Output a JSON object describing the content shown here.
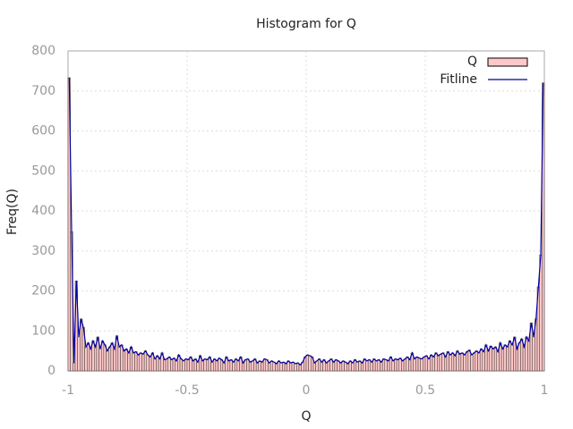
{
  "chart_data": {
    "type": "histogram",
    "title": "Histogram for Q",
    "x_label": "Q",
    "y_label": "Freq(Q)",
    "bins": [
      -1,
      -0.99,
      -0.98,
      -0.97,
      -0.96,
      -0.95,
      -0.94,
      -0.93,
      -0.92,
      -0.91,
      -0.9,
      -0.89,
      -0.88,
      -0.87,
      -0.86,
      -0.85,
      -0.84,
      -0.83,
      -0.82,
      -0.81,
      -0.8,
      -0.79,
      -0.78,
      -0.77,
      -0.76,
      -0.75,
      -0.74,
      -0.73,
      -0.72,
      -0.71,
      -0.7,
      -0.69,
      -0.68,
      -0.67,
      -0.66,
      -0.65,
      -0.64,
      -0.63,
      -0.62,
      -0.61,
      -0.6,
      -0.59,
      -0.58,
      -0.57,
      -0.56,
      -0.55,
      -0.54,
      -0.53,
      -0.52,
      -0.51,
      -0.5,
      -0.49,
      -0.48,
      -0.47,
      -0.46,
      -0.45,
      -0.44,
      -0.43,
      -0.42,
      -0.41,
      -0.4,
      -0.39,
      -0.38,
      -0.37,
      -0.36,
      -0.35,
      -0.34,
      -0.33,
      -0.32,
      -0.31,
      -0.3,
      -0.29,
      -0.28,
      -0.27,
      -0.26,
      -0.25,
      -0.24,
      -0.23,
      -0.22,
      -0.21,
      -0.2,
      -0.19,
      -0.18,
      -0.17,
      -0.16,
      -0.15,
      -0.14,
      -0.13,
      -0.12,
      -0.11,
      -0.1,
      -0.09,
      -0.08,
      -0.07,
      -0.06,
      -0.05,
      -0.04,
      -0.03,
      -0.02,
      -0.01,
      0,
      0.01,
      0.02,
      0.03,
      0.04,
      0.05,
      0.06,
      0.07,
      0.08,
      0.09,
      0.1,
      0.11,
      0.12,
      0.13,
      0.14,
      0.15,
      0.16,
      0.17,
      0.18,
      0.19,
      0.2,
      0.21,
      0.22,
      0.23,
      0.24,
      0.25,
      0.26,
      0.27,
      0.28,
      0.29,
      0.3,
      0.31,
      0.32,
      0.33,
      0.34,
      0.35,
      0.36,
      0.37,
      0.38,
      0.39,
      0.4,
      0.41,
      0.42,
      0.43,
      0.44,
      0.45,
      0.46,
      0.47,
      0.48,
      0.49,
      0.5,
      0.51,
      0.52,
      0.53,
      0.54,
      0.55,
      0.56,
      0.57,
      0.58,
      0.59,
      0.6,
      0.61,
      0.62,
      0.63,
      0.64,
      0.65,
      0.66,
      0.67,
      0.68,
      0.69,
      0.7,
      0.71,
      0.72,
      0.73,
      0.74,
      0.75,
      0.76,
      0.77,
      0.78,
      0.79,
      0.8,
      0.81,
      0.82,
      0.83,
      0.84,
      0.85,
      0.86,
      0.87,
      0.88,
      0.89,
      0.9,
      0.91,
      0.92,
      0.93,
      0.94,
      0.95,
      0.96,
      0.97,
      0.98,
      0.99,
      1
    ],
    "series": [
      {
        "name": "Q",
        "color": "#ffc8c8",
        "values": [
          733,
          348,
          20,
          225,
          85,
          130,
          108,
          60,
          70,
          55,
          75,
          60,
          85,
          55,
          75,
          65,
          50,
          60,
          70,
          55,
          88,
          60,
          65,
          50,
          55,
          45,
          60,
          45,
          48,
          40,
          45,
          42,
          50,
          40,
          35,
          45,
          30,
          38,
          30,
          45,
          28,
          30,
          35,
          28,
          32,
          25,
          40,
          30,
          25,
          30,
          28,
          35,
          25,
          30,
          22,
          38,
          25,
          30,
          28,
          35,
          22,
          30,
          25,
          32,
          28,
          20,
          35,
          25,
          28,
          22,
          30,
          25,
          35,
          20,
          28,
          30,
          22,
          25,
          30,
          20,
          25,
          22,
          30,
          28,
          20,
          25,
          22,
          18,
          25,
          20,
          22,
          18,
          25,
          20,
          22,
          18,
          20,
          15,
          22,
          35,
          40,
          38,
          35,
          20,
          25,
          30,
          22,
          28,
          20,
          25,
          30,
          22,
          28,
          25,
          20,
          25,
          22,
          18,
          25,
          20,
          28,
          22,
          25,
          20,
          30,
          25,
          28,
          22,
          30,
          25,
          28,
          22,
          30,
          28,
          25,
          35,
          25,
          30,
          28,
          32,
          25,
          30,
          35,
          28,
          45,
          30,
          35,
          32,
          30,
          35,
          38,
          30,
          40,
          35,
          45,
          38,
          42,
          45,
          35,
          48,
          40,
          45,
          38,
          50,
          42,
          45,
          40,
          48,
          52,
          40,
          45,
          50,
          45,
          55,
          48,
          65,
          50,
          62,
          55,
          60,
          48,
          70,
          55,
          65,
          60,
          75,
          65,
          85,
          55,
          70,
          80,
          60,
          85,
          75,
          120,
          85,
          130,
          210,
          290,
          720
        ]
      },
      {
        "name": "Fitline",
        "color": "#0000a0",
        "values": [
          733,
          348,
          20,
          225,
          85,
          130,
          108,
          60,
          70,
          55,
          75,
          60,
          85,
          55,
          75,
          65,
          50,
          60,
          70,
          55,
          88,
          60,
          65,
          50,
          55,
          45,
          60,
          45,
          48,
          40,
          45,
          42,
          50,
          40,
          35,
          45,
          30,
          38,
          30,
          45,
          28,
          30,
          35,
          28,
          32,
          25,
          40,
          30,
          25,
          30,
          28,
          35,
          25,
          30,
          22,
          38,
          25,
          30,
          28,
          35,
          22,
          30,
          25,
          32,
          28,
          20,
          35,
          25,
          28,
          22,
          30,
          25,
          35,
          20,
          28,
          30,
          22,
          25,
          30,
          20,
          25,
          22,
          30,
          28,
          20,
          25,
          22,
          18,
          25,
          20,
          22,
          18,
          25,
          20,
          22,
          18,
          20,
          15,
          22,
          35,
          40,
          38,
          35,
          20,
          25,
          30,
          22,
          28,
          20,
          25,
          30,
          22,
          28,
          25,
          20,
          25,
          22,
          18,
          25,
          20,
          28,
          22,
          25,
          20,
          30,
          25,
          28,
          22,
          30,
          25,
          28,
          22,
          30,
          28,
          25,
          35,
          25,
          30,
          28,
          32,
          25,
          30,
          35,
          28,
          45,
          30,
          35,
          32,
          30,
          35,
          38,
          30,
          40,
          35,
          45,
          38,
          42,
          45,
          35,
          48,
          40,
          45,
          38,
          50,
          42,
          45,
          40,
          48,
          52,
          40,
          45,
          50,
          45,
          55,
          48,
          65,
          50,
          62,
          55,
          60,
          48,
          70,
          55,
          65,
          60,
          75,
          65,
          85,
          55,
          70,
          80,
          60,
          85,
          75,
          120,
          85,
          130,
          210,
          290,
          720
        ]
      }
    ],
    "xlim": [
      -1,
      1
    ],
    "xticks": [
      -1,
      -0.5,
      0,
      0.5,
      1
    ],
    "ylim": [
      0,
      800
    ],
    "yticks": [
      0,
      100,
      200,
      300,
      400,
      500,
      600,
      700,
      800
    ],
    "grid": true,
    "legend": "top-right"
  }
}
